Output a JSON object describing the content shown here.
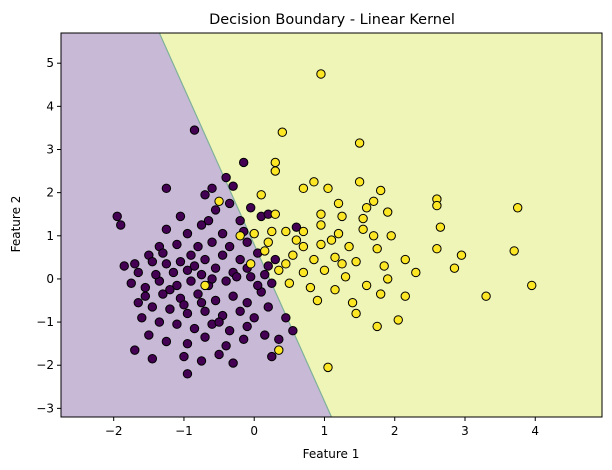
{
  "chart_data": {
    "type": "scatter",
    "title": "Decision Boundary - Linear Kernel",
    "xlabel": "Feature 1",
    "ylabel": "Feature 2",
    "xlim": [
      -2.75,
      4.95
    ],
    "ylim": [
      -3.2,
      5.7
    ],
    "x_ticks": [
      -2,
      -1,
      0,
      1,
      2,
      3,
      4
    ],
    "y_ticks": [
      -3,
      -2,
      -1,
      0,
      1,
      2,
      3,
      4,
      5
    ],
    "grid": false,
    "legend": "none",
    "decision_boundary": {
      "line": [
        [
          -1.35,
          5.7
        ],
        [
          1.1,
          -3.2
        ]
      ],
      "left_region_class": 0,
      "right_region_class": 1
    },
    "colors": {
      "class0_region": "#c8b9d6",
      "class1_region": "#eff4b7",
      "boundary": "#7fb19a",
      "class0_points": "#440154",
      "class1_points": "#fde725",
      "point_edge": "#000000"
    },
    "series": [
      {
        "class": 0,
        "points": [
          [
            -0.85,
            3.45
          ],
          [
            -0.15,
            2.7
          ],
          [
            -0.4,
            2.35
          ],
          [
            -0.3,
            2.15
          ],
          [
            -0.6,
            2.1
          ],
          [
            -1.25,
            2.1
          ],
          [
            -0.7,
            1.95
          ],
          [
            -0.05,
            1.65
          ],
          [
            -0.35,
            1.75
          ],
          [
            -0.55,
            1.6
          ],
          [
            -1.95,
            1.45
          ],
          [
            -1.9,
            1.25
          ],
          [
            -1.05,
            1.45
          ],
          [
            -0.75,
            1.25
          ],
          [
            -0.65,
            1.35
          ],
          [
            -0.2,
            1.35
          ],
          [
            0.1,
            1.45
          ],
          [
            0.2,
            1.5
          ],
          [
            -0.15,
            1.1
          ],
          [
            -0.45,
            1.05
          ],
          [
            -0.95,
            1.05
          ],
          [
            -1.25,
            1.15
          ],
          [
            -0.1,
            0.85
          ],
          [
            -0.35,
            0.75
          ],
          [
            -0.6,
            0.85
          ],
          [
            -0.8,
            0.75
          ],
          [
            -1.1,
            0.8
          ],
          [
            -1.35,
            0.75
          ],
          [
            -0.9,
            0.55
          ],
          [
            -1.05,
            0.4
          ],
          [
            -0.7,
            0.45
          ],
          [
            -0.45,
            0.55
          ],
          [
            -0.2,
            0.45
          ],
          [
            0.05,
            0.6
          ],
          [
            0.2,
            0.3
          ],
          [
            -1.3,
            0.6
          ],
          [
            -1.5,
            0.55
          ],
          [
            -1.7,
            0.35
          ],
          [
            -1.45,
            0.4
          ],
          [
            -1.65,
            0.15
          ],
          [
            -1.85,
            0.3
          ],
          [
            -1.25,
            0.35
          ],
          [
            -1.15,
            0.15
          ],
          [
            -0.95,
            0.2
          ],
          [
            -0.75,
            0.1
          ],
          [
            -0.55,
            0.25
          ],
          [
            -0.3,
            0.15
          ],
          [
            -0.1,
            0.25
          ],
          [
            -0.05,
            0.05
          ],
          [
            -0.4,
            -0.05
          ],
          [
            -0.65,
            -0.15
          ],
          [
            -0.9,
            -0.05
          ],
          [
            -1.1,
            -0.15
          ],
          [
            -1.35,
            -0.05
          ],
          [
            -1.55,
            -0.2
          ],
          [
            -1.75,
            -0.1
          ],
          [
            -1.55,
            -0.4
          ],
          [
            -1.3,
            -0.35
          ],
          [
            -1.05,
            -0.45
          ],
          [
            -0.8,
            -0.35
          ],
          [
            -0.55,
            -0.5
          ],
          [
            -0.3,
            -0.4
          ],
          [
            -0.1,
            -0.55
          ],
          [
            0.1,
            -0.3
          ],
          [
            0.25,
            -0.1
          ],
          [
            -1.65,
            -0.55
          ],
          [
            -1.45,
            -0.65
          ],
          [
            -1.2,
            -0.7
          ],
          [
            -0.95,
            -0.8
          ],
          [
            -0.7,
            -0.75
          ],
          [
            -0.45,
            -0.85
          ],
          [
            -0.2,
            -0.75
          ],
          [
            0.0,
            -0.9
          ],
          [
            0.2,
            -0.65
          ],
          [
            -1.6,
            -0.9
          ],
          [
            -1.35,
            -1.0
          ],
          [
            -1.1,
            -1.05
          ],
          [
            -0.85,
            -1.15
          ],
          [
            -0.6,
            -1.05
          ],
          [
            -0.35,
            -1.2
          ],
          [
            -0.1,
            -1.1
          ],
          [
            0.15,
            -1.3
          ],
          [
            -1.5,
            -1.3
          ],
          [
            -1.25,
            -1.45
          ],
          [
            -0.95,
            -1.5
          ],
          [
            -0.7,
            -1.35
          ],
          [
            -0.4,
            -1.55
          ],
          [
            -0.15,
            -1.4
          ],
          [
            -1.0,
            -1.8
          ],
          [
            -0.75,
            -1.9
          ],
          [
            -0.5,
            -1.75
          ],
          [
            -0.95,
            -2.2
          ],
          [
            -0.3,
            -1.95
          ],
          [
            0.35,
            -1.4
          ],
          [
            0.55,
            -1.2
          ],
          [
            0.45,
            -0.9
          ],
          [
            0.25,
            -1.8
          ],
          [
            -1.7,
            -1.65
          ],
          [
            -1.45,
            -1.85
          ],
          [
            0.6,
            1.2
          ],
          [
            0.3,
            0.45
          ],
          [
            -0.6,
            0.0
          ],
          [
            -0.85,
            0.3
          ],
          [
            -1.0,
            -0.6
          ],
          [
            -0.25,
            0.05
          ],
          [
            0.05,
            -0.15
          ],
          [
            -1.4,
            0.1
          ],
          [
            -0.5,
            -1.0
          ],
          [
            0.15,
            0.1
          ],
          [
            -0.75,
            -0.55
          ],
          [
            -1.2,
            -0.25
          ]
        ]
      },
      {
        "class": 1,
        "points": [
          [
            0.95,
            4.75
          ],
          [
            0.4,
            3.4
          ],
          [
            1.5,
            3.15
          ],
          [
            0.3,
            2.7
          ],
          [
            0.3,
            2.5
          ],
          [
            0.85,
            2.25
          ],
          [
            1.5,
            2.25
          ],
          [
            0.7,
            2.1
          ],
          [
            1.05,
            2.1
          ],
          [
            1.8,
            2.05
          ],
          [
            0.1,
            1.95
          ],
          [
            1.7,
            1.8
          ],
          [
            1.2,
            1.75
          ],
          [
            1.6,
            1.65
          ],
          [
            2.6,
            1.85
          ],
          [
            2.6,
            1.7
          ],
          [
            3.75,
            1.65
          ],
          [
            0.95,
            1.5
          ],
          [
            1.25,
            1.45
          ],
          [
            1.55,
            1.4
          ],
          [
            1.9,
            1.55
          ],
          [
            0.3,
            1.5
          ],
          [
            -0.5,
            1.8
          ],
          [
            0.95,
            1.25
          ],
          [
            1.55,
            1.15
          ],
          [
            1.95,
            1.0
          ],
          [
            2.65,
            1.2
          ],
          [
            0.25,
            1.1
          ],
          [
            0.45,
            1.1
          ],
          [
            0.7,
            1.1
          ],
          [
            1.2,
            1.05
          ],
          [
            0.2,
            0.85
          ],
          [
            0.0,
            1.05
          ],
          [
            0.7,
            0.75
          ],
          [
            0.95,
            0.8
          ],
          [
            1.35,
            0.75
          ],
          [
            1.75,
            0.7
          ],
          [
            2.15,
            0.45
          ],
          [
            2.6,
            0.7
          ],
          [
            2.95,
            0.55
          ],
          [
            3.7,
            0.65
          ],
          [
            0.55,
            0.55
          ],
          [
            0.85,
            0.45
          ],
          [
            1.15,
            0.5
          ],
          [
            1.45,
            0.4
          ],
          [
            1.85,
            0.3
          ],
          [
            2.3,
            0.15
          ],
          [
            2.85,
            0.25
          ],
          [
            0.35,
            0.2
          ],
          [
            0.7,
            0.15
          ],
          [
            1.0,
            0.2
          ],
          [
            1.3,
            0.05
          ],
          [
            1.6,
            -0.15
          ],
          [
            1.9,
            0.0
          ],
          [
            0.5,
            -0.1
          ],
          [
            0.8,
            -0.2
          ],
          [
            1.15,
            -0.25
          ],
          [
            1.4,
            -0.55
          ],
          [
            1.8,
            -0.35
          ],
          [
            2.15,
            -0.4
          ],
          [
            3.3,
            -0.4
          ],
          [
            3.95,
            -0.15
          ],
          [
            0.9,
            -0.5
          ],
          [
            1.45,
            -0.8
          ],
          [
            1.75,
            -1.1
          ],
          [
            2.05,
            -0.95
          ],
          [
            1.05,
            -2.05
          ],
          [
            0.35,
            -1.65
          ],
          [
            -0.05,
            0.35
          ],
          [
            0.15,
            0.65
          ],
          [
            -0.2,
            1.0
          ],
          [
            0.6,
            0.9
          ],
          [
            1.1,
            0.9
          ],
          [
            1.7,
            1.0
          ],
          [
            1.25,
            0.35
          ],
          [
            0.45,
            0.35
          ],
          [
            -0.7,
            -0.15
          ]
        ]
      }
    ]
  }
}
